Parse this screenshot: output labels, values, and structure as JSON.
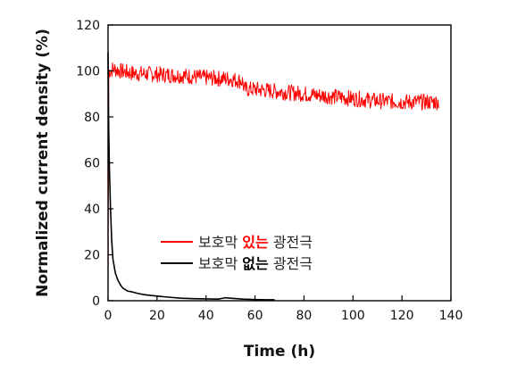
{
  "chart_data": {
    "type": "line",
    "xlabel": "Time (h)",
    "ylabel": "Normalized current density (%)",
    "xlim": [
      0,
      140
    ],
    "ylim": [
      0,
      120
    ],
    "xticks": [
      0,
      20,
      40,
      60,
      80,
      100,
      120,
      140
    ],
    "yticks": [
      0,
      20,
      40,
      60,
      80,
      100,
      120
    ],
    "grid": false,
    "legend_position": "center",
    "series": [
      {
        "name": "보호막 있는 광전극",
        "name_prefix": "보호막",
        "name_emphasis": "있는",
        "name_suffix": "광전극",
        "color": "#ff0000",
        "noise_band": 7,
        "x": [
          0,
          0.3,
          1,
          2,
          5,
          10,
          20,
          30,
          40,
          50,
          55,
          55.5,
          60,
          70,
          80,
          90,
          100,
          110,
          120,
          130,
          135
        ],
        "y": [
          0,
          100,
          100,
          101,
          100,
          99,
          98.5,
          98,
          97,
          96.5,
          95.5,
          92,
          92,
          91,
          90,
          89,
          88,
          87,
          86.5,
          86.5,
          86.5
        ]
      },
      {
        "name": "보호막 없는 광전극",
        "name_prefix": "보호막",
        "name_emphasis": "없는",
        "name_suffix": "광전극",
        "color": "#000000",
        "noise_band": 0,
        "x": [
          0,
          0.2,
          0.5,
          1,
          1.5,
          2,
          3,
          4,
          5,
          6,
          8,
          10,
          12,
          15,
          20,
          25,
          30,
          35,
          40,
          45,
          48,
          50,
          55,
          60,
          65,
          68
        ],
        "y": [
          108,
          80,
          60,
          40,
          26,
          18,
          12,
          9,
          7,
          5.5,
          4.2,
          3.8,
          3.2,
          2.6,
          2.0,
          1.5,
          1.1,
          0.9,
          0.8,
          0.7,
          1.3,
          1.1,
          0.7,
          0.5,
          0.4,
          0.4
        ]
      }
    ]
  }
}
